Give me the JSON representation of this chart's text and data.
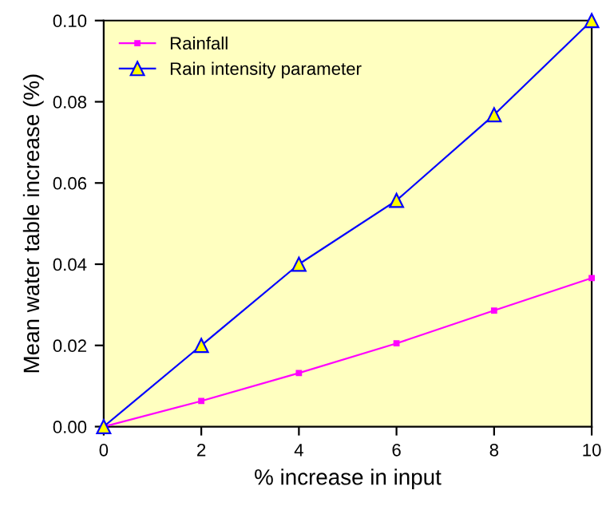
{
  "chart_data": {
    "type": "line",
    "xlabel": "% increase in input",
    "ylabel": "Mean water table increase (%)",
    "x": [
      0,
      2,
      4,
      6,
      8,
      10
    ],
    "series": [
      {
        "name": "Rainfall",
        "color": "#ff00ff",
        "marker": "square",
        "values": [
          0,
          0.0063,
          0.0132,
          0.0205,
          0.0286,
          0.0366
        ]
      },
      {
        "name": "Rain intensity parameter",
        "color": "#0000ff",
        "marker": "triangle",
        "values": [
          0,
          0.02,
          0.04,
          0.0557,
          0.0768,
          0.1
        ]
      }
    ],
    "xlim": [
      0,
      10
    ],
    "xticks": [
      0,
      2,
      4,
      6,
      8,
      10
    ],
    "ylim": [
      0,
      0.1
    ],
    "yticks": [
      {
        "value": 0,
        "label": "0.00"
      },
      {
        "value": 0.02,
        "label": "0.02"
      },
      {
        "value": 0.04,
        "label": "0.04"
      },
      {
        "value": 0.06,
        "label": "0.06"
      },
      {
        "value": 0.08,
        "label": "0.08"
      },
      {
        "value": 0.1,
        "label": "0.10"
      }
    ],
    "grid": false,
    "legend": "top left"
  }
}
